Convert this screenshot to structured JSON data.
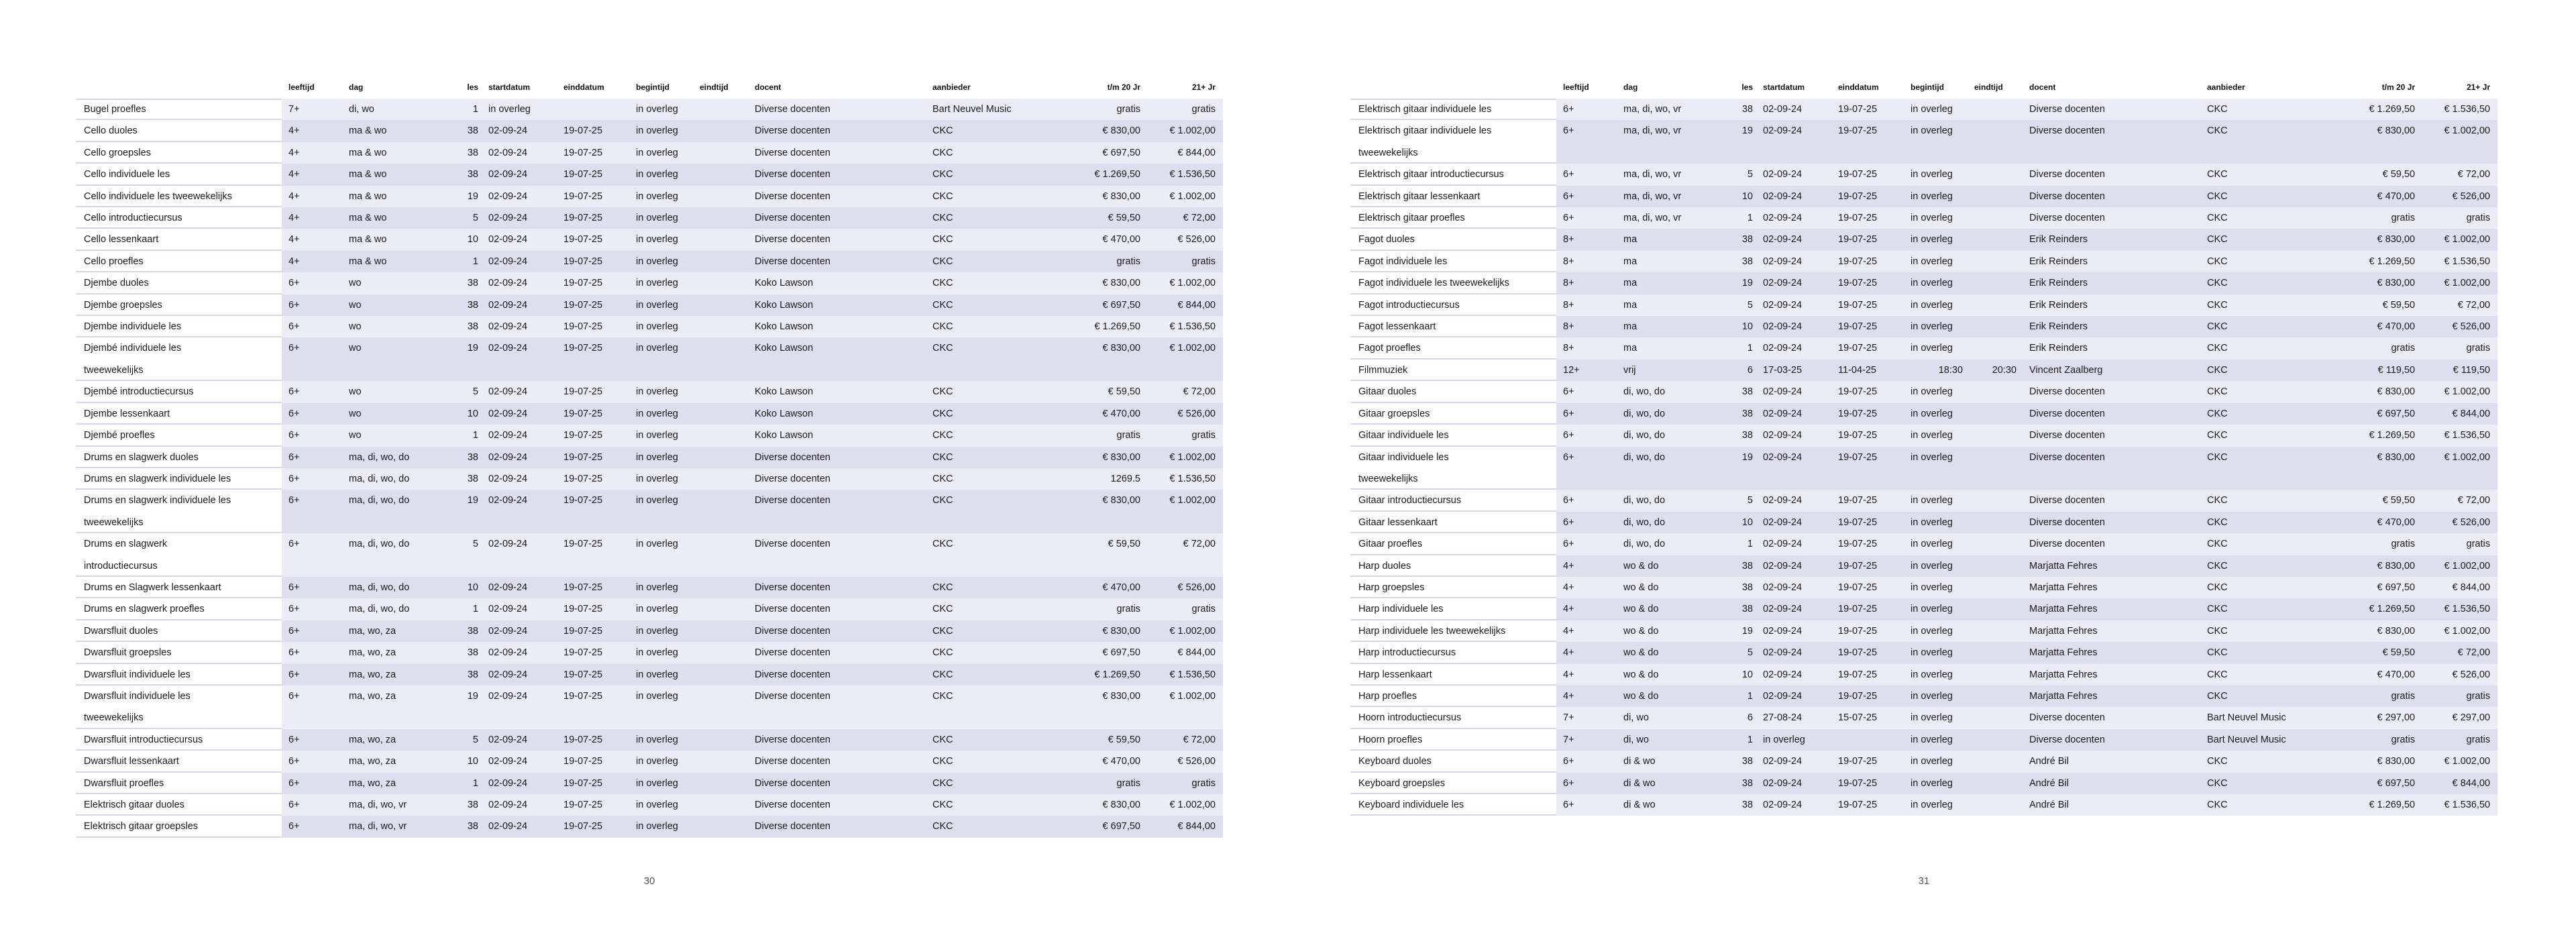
{
  "colors": {
    "stripe_light": "#ECECF6",
    "stripe_dark": "#DEDEEF",
    "name_separator": "#D8D8E9",
    "text": "#1A1A1A",
    "page_number": "#555555",
    "background": "#FFFFFF"
  },
  "document": {
    "column_headers": [
      "leeftijd",
      "dag",
      "les",
      "startdatum",
      "einddatum",
      "begintijd",
      "eindtijd",
      "docent",
      "aanbieder",
      "t/m 20 Jr",
      "21+ Jr"
    ],
    "pages": [
      {
        "page_number": "30",
        "rows": [
          [
            "Bugel proefles",
            "7+",
            "di, wo",
            "1",
            "in overleg",
            "",
            "in overleg",
            "",
            "Diverse docenten",
            "Bart Neuvel Music",
            "gratis",
            "gratis"
          ],
          [
            "Cello duoles",
            "4+",
            "ma & wo",
            "38",
            "02-09-24",
            "19-07-25",
            "in overleg",
            "",
            "Diverse docenten",
            "CKC",
            "€ 830,00",
            "€ 1.002,00"
          ],
          [
            "Cello groepsles",
            "4+",
            "ma & wo",
            "38",
            "02-09-24",
            "19-07-25",
            "in overleg",
            "",
            "Diverse docenten",
            "CKC",
            "€ 697,50",
            "€ 844,00"
          ],
          [
            "Cello individuele les",
            "4+",
            "ma & wo",
            "38",
            "02-09-24",
            "19-07-25",
            "in overleg",
            "",
            "Diverse docenten",
            "CKC",
            "€ 1.269,50",
            "€ 1.536,50"
          ],
          [
            "Cello individuele les tweewekelijks",
            "4+",
            "ma & wo",
            "19",
            "02-09-24",
            "19-07-25",
            "in overleg",
            "",
            "Diverse docenten",
            "CKC",
            "€ 830,00",
            "€ 1.002,00"
          ],
          [
            "Cello introductiecursus",
            "4+",
            "ma & wo",
            "5",
            "02-09-24",
            "19-07-25",
            "in overleg",
            "",
            "Diverse docenten",
            "CKC",
            "€ 59,50",
            "€ 72,00"
          ],
          [
            "Cello lessenkaart",
            "4+",
            "ma & wo",
            "10",
            "02-09-24",
            "19-07-25",
            "in overleg",
            "",
            "Diverse docenten",
            "CKC",
            "€ 470,00",
            "€ 526,00"
          ],
          [
            "Cello proefles",
            "4+",
            "ma & wo",
            "1",
            "02-09-24",
            "19-07-25",
            "in overleg",
            "",
            "Diverse docenten",
            "CKC",
            "gratis",
            "gratis"
          ],
          [
            "Djembe duoles",
            "6+",
            "wo",
            "38",
            "02-09-24",
            "19-07-25",
            "in overleg",
            "",
            "Koko Lawson",
            "CKC",
            "€ 830,00",
            "€ 1.002,00"
          ],
          [
            "Djembe groepsles",
            "6+",
            "wo",
            "38",
            "02-09-24",
            "19-07-25",
            "in overleg",
            "",
            "Koko Lawson",
            "CKC",
            "€ 697,50",
            "€ 844,00"
          ],
          [
            "Djembe individuele les",
            "6+",
            "wo",
            "38",
            "02-09-24",
            "19-07-25",
            "in overleg",
            "",
            "Koko Lawson",
            "CKC",
            "€ 1.269,50",
            "€ 1.536,50"
          ],
          [
            "Djembé individuele les\ntweewekelijks",
            "6+",
            "wo",
            "19",
            "02-09-24",
            "19-07-25",
            "in overleg",
            "",
            "Koko Lawson",
            "CKC",
            "€ 830,00",
            "€ 1.002,00"
          ],
          [
            "Djembé introductiecursus",
            "6+",
            "wo",
            "5",
            "02-09-24",
            "19-07-25",
            "in overleg",
            "",
            "Koko Lawson",
            "CKC",
            "€ 59,50",
            "€ 72,00"
          ],
          [
            "Djembe lessenkaart",
            "6+",
            "wo",
            "10",
            "02-09-24",
            "19-07-25",
            "in overleg",
            "",
            "Koko Lawson",
            "CKC",
            "€ 470,00",
            "€ 526,00"
          ],
          [
            "Djembé proefles",
            "6+",
            "wo",
            "1",
            "02-09-24",
            "19-07-25",
            "in overleg",
            "",
            "Koko Lawson",
            "CKC",
            "gratis",
            "gratis"
          ],
          [
            "Drums en slagwerk duoles",
            "6+",
            "ma, di, wo, do",
            "38",
            "02-09-24",
            "19-07-25",
            "in overleg",
            "",
            "Diverse docenten",
            "CKC",
            "€ 830,00",
            "€ 1.002,00"
          ],
          [
            "Drums en slagwerk individuele les",
            "6+",
            "ma, di, wo, do",
            "38",
            "02-09-24",
            "19-07-25",
            "in overleg",
            "",
            "Diverse docenten",
            "CKC",
            "1269.5",
            "€ 1.536,50"
          ],
          [
            "Drums en slagwerk individuele les\ntweewekelijks",
            "6+",
            "ma, di, wo, do",
            "19",
            "02-09-24",
            "19-07-25",
            "in overleg",
            "",
            "Diverse docenten",
            "CKC",
            "€ 830,00",
            "€ 1.002,00"
          ],
          [
            "Drums en slagwerk\nintroductiecursus",
            "6+",
            "ma, di, wo, do",
            "5",
            "02-09-24",
            "19-07-25",
            "in overleg",
            "",
            "Diverse docenten",
            "CKC",
            "€ 59,50",
            "€ 72,00"
          ],
          [
            "Drums en Slagwerk lessenkaart",
            "6+",
            "ma, di, wo, do",
            "10",
            "02-09-24",
            "19-07-25",
            "in overleg",
            "",
            "Diverse docenten",
            "CKC",
            "€ 470,00",
            "€ 526,00"
          ],
          [
            "Drums en slagwerk proefles",
            "6+",
            "ma, di, wo, do",
            "1",
            "02-09-24",
            "19-07-25",
            "in overleg",
            "",
            "Diverse docenten",
            "CKC",
            "gratis",
            "gratis"
          ],
          [
            "Dwarsfluit duoles",
            "6+",
            "ma, wo, za",
            "38",
            "02-09-24",
            "19-07-25",
            "in overleg",
            "",
            "Diverse docenten",
            "CKC",
            "€ 830,00",
            "€ 1.002,00"
          ],
          [
            "Dwarsfluit groepsles",
            "6+",
            "ma, wo, za",
            "38",
            "02-09-24",
            "19-07-25",
            "in overleg",
            "",
            "Diverse docenten",
            "CKC",
            "€ 697,50",
            "€ 844,00"
          ],
          [
            "Dwarsfluit individuele les",
            "6+",
            "ma, wo, za",
            "38",
            "02-09-24",
            "19-07-25",
            "in overleg",
            "",
            "Diverse docenten",
            "CKC",
            "€ 1.269,50",
            "€ 1.536,50"
          ],
          [
            "Dwarsfluit individuele les\ntweewekelijks",
            "6+",
            "ma, wo, za",
            "19",
            "02-09-24",
            "19-07-25",
            "in overleg",
            "",
            "Diverse docenten",
            "CKC",
            "€ 830,00",
            "€ 1.002,00"
          ],
          [
            "Dwarsfluit introductiecursus",
            "6+",
            "ma, wo, za",
            "5",
            "02-09-24",
            "19-07-25",
            "in overleg",
            "",
            "Diverse docenten",
            "CKC",
            "€ 59,50",
            "€ 72,00"
          ],
          [
            "Dwarsfluit lessenkaart",
            "6+",
            "ma, wo, za",
            "10",
            "02-09-24",
            "19-07-25",
            "in overleg",
            "",
            "Diverse docenten",
            "CKC",
            "€ 470,00",
            "€ 526,00"
          ],
          [
            "Dwarsfluit proefles",
            "6+",
            "ma, wo, za",
            "1",
            "02-09-24",
            "19-07-25",
            "in overleg",
            "",
            "Diverse docenten",
            "CKC",
            "gratis",
            "gratis"
          ],
          [
            "Elektrisch gitaar duoles",
            "6+",
            "ma, di, wo, vr",
            "38",
            "02-09-24",
            "19-07-25",
            "in overleg",
            "",
            "Diverse docenten",
            "CKC",
            "€ 830,00",
            "€ 1.002,00"
          ],
          [
            "Elektrisch gitaar groepsles",
            "6+",
            "ma, di, wo, vr",
            "38",
            "02-09-24",
            "19-07-25",
            "in overleg",
            "",
            "Diverse docenten",
            "CKC",
            "€ 697,50",
            "€ 844,00"
          ]
        ]
      },
      {
        "page_number": "31",
        "rows": [
          [
            "Elektrisch gitaar individuele les",
            "6+",
            "ma, di, wo, vr",
            "38",
            "02-09-24",
            "19-07-25",
            "in overleg",
            "",
            "Diverse docenten",
            "CKC",
            "€ 1.269,50",
            "€ 1.536,50"
          ],
          [
            "Elektrisch gitaar individuele les\ntweewekelijks",
            "6+",
            "ma, di, wo, vr",
            "19",
            "02-09-24",
            "19-07-25",
            "in overleg",
            "",
            "Diverse docenten",
            "CKC",
            "€ 830,00",
            "€ 1.002,00"
          ],
          [
            "Elektrisch gitaar introductiecursus",
            "6+",
            "ma, di, wo, vr",
            "5",
            "02-09-24",
            "19-07-25",
            "in overleg",
            "",
            "Diverse docenten",
            "CKC",
            "€ 59,50",
            "€ 72,00"
          ],
          [
            "Elektrisch gitaar lessenkaart",
            "6+",
            "ma, di, wo, vr",
            "10",
            "02-09-24",
            "19-07-25",
            "in overleg",
            "",
            "Diverse docenten",
            "CKC",
            "€ 470,00",
            "€ 526,00"
          ],
          [
            "Elektrisch gitaar proefles",
            "6+",
            "ma, di, wo, vr",
            "1",
            "02-09-24",
            "19-07-25",
            "in overleg",
            "",
            "Diverse docenten",
            "CKC",
            "gratis",
            "gratis"
          ],
          [
            "Fagot duoles",
            "8+",
            "ma",
            "38",
            "02-09-24",
            "19-07-25",
            "in overleg",
            "",
            "Erik Reinders",
            "CKC",
            "€ 830,00",
            "€ 1.002,00"
          ],
          [
            "Fagot individuele les",
            "8+",
            "ma",
            "38",
            "02-09-24",
            "19-07-25",
            "in overleg",
            "",
            "Erik Reinders",
            "CKC",
            "€ 1.269,50",
            "€ 1.536,50"
          ],
          [
            "Fagot individuele les tweewekelijks",
            "8+",
            "ma",
            "19",
            "02-09-24",
            "19-07-25",
            "in overleg",
            "",
            "Erik Reinders",
            "CKC",
            "€ 830,00",
            "€ 1.002,00"
          ],
          [
            "Fagot introductiecursus",
            "8+",
            "ma",
            "5",
            "02-09-24",
            "19-07-25",
            "in overleg",
            "",
            "Erik Reinders",
            "CKC",
            "€ 59,50",
            "€ 72,00"
          ],
          [
            "Fagot lessenkaart",
            "8+",
            "ma",
            "10",
            "02-09-24",
            "19-07-25",
            "in overleg",
            "",
            "Erik Reinders",
            "CKC",
            "€ 470,00",
            "€ 526,00"
          ],
          [
            "Fagot proefles",
            "8+",
            "ma",
            "1",
            "02-09-24",
            "19-07-25",
            "in overleg",
            "",
            "Erik Reinders",
            "CKC",
            "gratis",
            "gratis"
          ],
          [
            "Filmmuziek",
            "12+",
            "vrij",
            "6",
            "17-03-25",
            "11-04-25",
            "18:30",
            "20:30",
            "Vincent Zaalberg",
            "CKC",
            "€ 119,50",
            "€ 119,50"
          ],
          [
            "Gitaar duoles",
            "6+",
            "di, wo, do",
            "38",
            "02-09-24",
            "19-07-25",
            "in overleg",
            "",
            "Diverse docenten",
            "CKC",
            "€ 830,00",
            "€ 1.002,00"
          ],
          [
            "Gitaar groepsles",
            "6+",
            "di, wo, do",
            "38",
            "02-09-24",
            "19-07-25",
            "in overleg",
            "",
            "Diverse docenten",
            "CKC",
            "€ 697,50",
            "€ 844,00"
          ],
          [
            "Gitaar individuele les",
            "6+",
            "di, wo, do",
            "38",
            "02-09-24",
            "19-07-25",
            "in overleg",
            "",
            "Diverse docenten",
            "CKC",
            "€ 1.269,50",
            "€ 1.536,50"
          ],
          [
            "Gitaar individuele les\ntweewekelijks",
            "6+",
            "di, wo, do",
            "19",
            "02-09-24",
            "19-07-25",
            "in overleg",
            "",
            "Diverse docenten",
            "CKC",
            "€ 830,00",
            "€ 1.002,00"
          ],
          [
            "Gitaar introductiecursus",
            "6+",
            "di, wo, do",
            "5",
            "02-09-24",
            "19-07-25",
            "in overleg",
            "",
            "Diverse docenten",
            "CKC",
            "€ 59,50",
            "€ 72,00"
          ],
          [
            "Gitaar lessenkaart",
            "6+",
            "di, wo, do",
            "10",
            "02-09-24",
            "19-07-25",
            "in overleg",
            "",
            "Diverse docenten",
            "CKC",
            "€ 470,00",
            "€ 526,00"
          ],
          [
            "Gitaar proefles",
            "6+",
            "di, wo, do",
            "1",
            "02-09-24",
            "19-07-25",
            "in overleg",
            "",
            "Diverse docenten",
            "CKC",
            "gratis",
            "gratis"
          ],
          [
            "Harp duoles",
            "4+",
            "wo & do",
            "38",
            "02-09-24",
            "19-07-25",
            "in overleg",
            "",
            "Marjatta Fehres",
            "CKC",
            "€ 830,00",
            "€ 1.002,00"
          ],
          [
            "Harp groepsles",
            "4+",
            "wo & do",
            "38",
            "02-09-24",
            "19-07-25",
            "in overleg",
            "",
            "Marjatta Fehres",
            "CKC",
            "€ 697,50",
            "€ 844,00"
          ],
          [
            "Harp individuele les",
            "4+",
            "wo & do",
            "38",
            "02-09-24",
            "19-07-25",
            "in overleg",
            "",
            "Marjatta Fehres",
            "CKC",
            "€ 1.269,50",
            "€ 1.536,50"
          ],
          [
            "Harp individuele les tweewekelijks",
            "4+",
            "wo & do",
            "19",
            "02-09-24",
            "19-07-25",
            "in overleg",
            "",
            "Marjatta Fehres",
            "CKC",
            "€ 830,00",
            "€ 1.002,00"
          ],
          [
            "Harp introductiecursus",
            "4+",
            "wo & do",
            "5",
            "02-09-24",
            "19-07-25",
            "in overleg",
            "",
            "Marjatta Fehres",
            "CKC",
            "€ 59,50",
            "€ 72,00"
          ],
          [
            "Harp lessenkaart",
            "4+",
            "wo & do",
            "10",
            "02-09-24",
            "19-07-25",
            "in overleg",
            "",
            "Marjatta Fehres",
            "CKC",
            "€ 470,00",
            "€ 526,00"
          ],
          [
            "Harp proefles",
            "4+",
            "wo & do",
            "1",
            "02-09-24",
            "19-07-25",
            "in overleg",
            "",
            "Marjatta Fehres",
            "CKC",
            "gratis",
            "gratis"
          ],
          [
            "Hoorn introductiecursus",
            "7+",
            "di, wo",
            "6",
            "27-08-24",
            "15-07-25",
            "in overleg",
            "",
            "Diverse docenten",
            "Bart Neuvel Music",
            "€ 297,00",
            "€ 297,00"
          ],
          [
            "Hoorn proefles",
            "7+",
            "di, wo",
            "1",
            "in overleg",
            "",
            "in overleg",
            "",
            "Diverse docenten",
            "Bart Neuvel Music",
            "gratis",
            "gratis"
          ],
          [
            "Keyboard duoles",
            "6+",
            "di & wo",
            "38",
            "02-09-24",
            "19-07-25",
            "in overleg",
            "",
            "André Bil",
            "CKC",
            "€ 830,00",
            "€ 1.002,00"
          ],
          [
            "Keyboard groepsles",
            "6+",
            "di & wo",
            "38",
            "02-09-24",
            "19-07-25",
            "in overleg",
            "",
            "André Bil",
            "CKC",
            "€ 697,50",
            "€ 844,00"
          ],
          [
            "Keyboard individuele les",
            "6+",
            "di & wo",
            "38",
            "02-09-24",
            "19-07-25",
            "in overleg",
            "",
            "André Bil",
            "CKC",
            "€ 1.269,50",
            "€ 1.536,50"
          ]
        ]
      }
    ]
  }
}
